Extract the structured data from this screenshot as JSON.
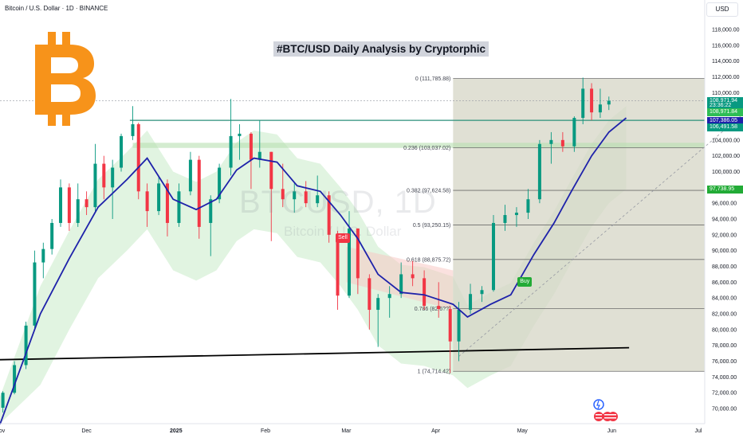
{
  "header": {
    "symbol_line": "Bitcoin / U.S. Dollar · 1D · BINANCE",
    "title": "#BTC/USD Daily Analysis by Cryptorphic",
    "currency_button": "USD"
  },
  "watermark": {
    "line1": "BTCUSD, 1D",
    "line2": "Bitcoin / U.S. Dollar"
  },
  "colors": {
    "up": "#089981",
    "down": "#f23645",
    "ema": "#1e22aa",
    "fib_box": "#d6d5c6",
    "cloud": "#c8ebc8"
  },
  "chart_data": {
    "type": "candlestick",
    "title": "#BTC/USD Daily Analysis by Cryptorphic",
    "y_axis": {
      "ylim": [
        68900,
        120600
      ],
      "ticks": [
        70000,
        72000,
        74000,
        76000,
        78000,
        80000,
        82000,
        84000,
        86000,
        88000,
        90000,
        92000,
        94000,
        96000,
        98000,
        100000,
        102000,
        104000,
        106000,
        108000,
        110000,
        112000,
        114000,
        116000,
        118000
      ],
      "tick_labels": [
        "70,000.00",
        "72,000.00",
        "74,000.00",
        "76,000.00",
        "78,000.00",
        "80,000.00",
        "82,000.00",
        "84,000.00",
        "86,000.00",
        "88,000.00",
        "90,000.00",
        "92,000.00",
        "94,000.00",
        "96,000.00",
        "98,000.00",
        "100,000.00",
        "102,000.00",
        "104,000.00",
        "106,000.00",
        "108,000.00",
        "110,000.00",
        "112,000.00",
        "114,000.00",
        "116,000.00",
        "118,000.00"
      ]
    },
    "x_axis": {
      "labels": [
        "Nov",
        "Dec",
        "2025",
        "Feb",
        "Mar",
        "Apr",
        "May",
        "Jun",
        "Jul"
      ],
      "dates": [
        "2024-11-01",
        "2024-12-01",
        "2025-01-01",
        "2025-02-01",
        "2025-03-01",
        "2025-04-01",
        "2025-05-01",
        "2025-06-01",
        "2025-07-01"
      ]
    },
    "fibonacci": [
      {
        "label": "0 (111,785.88)",
        "level": 0,
        "price": 111785.88
      },
      {
        "label": "0.236 (103,037.02)",
        "level": 0.236,
        "price": 103037.02
      },
      {
        "label": "0.382 (97,624.58)",
        "level": 0.382,
        "price": 97624.58
      },
      {
        "label": "0.5 (93,250.15)",
        "level": 0.5,
        "price": 93250.15
      },
      {
        "label": "0.618 (88,875.72)",
        "level": 0.618,
        "price": 88875.72
      },
      {
        "label": "0.786 (82,6??)",
        "level": 0.786,
        "price": 82646.0
      },
      {
        "label": "1 (74,714.42)",
        "level": 1,
        "price": 74714.42
      }
    ],
    "fib_range": {
      "start": "2025-04-07",
      "end": "2025-07-31"
    },
    "horizontal_levels": [
      {
        "name": "resistance-zone-low",
        "price": 103000
      },
      {
        "name": "resistance-zone-high",
        "price": 103650
      },
      {
        "name": "support-line",
        "price": 106490
      }
    ],
    "trendline": {
      "points": [
        [
          "2024-10-20",
          76100
        ],
        [
          "2025-06-07",
          77700
        ]
      ]
    },
    "diagonal": {
      "points": [
        [
          "2025-04-09",
          76600
        ],
        [
          "2025-07-31",
          111800
        ]
      ]
    },
    "ema": [
      [
        "2024-11-01",
        68000
      ],
      [
        "2024-11-15",
        82000
      ],
      [
        "2024-11-25",
        89000
      ],
      [
        "2024-12-05",
        95500
      ],
      [
        "2024-12-15",
        99000
      ],
      [
        "2024-12-22",
        101700
      ],
      [
        "2024-12-31",
        96500
      ],
      [
        "2025-01-08",
        95200
      ],
      [
        "2025-01-15",
        96500
      ],
      [
        "2025-01-22",
        100200
      ],
      [
        "2025-01-28",
        101700
      ],
      [
        "2025-02-05",
        101200
      ],
      [
        "2025-02-12",
        98200
      ],
      [
        "2025-02-20",
        97500
      ],
      [
        "2025-02-27",
        94500
      ],
      [
        "2025-03-05",
        91500
      ],
      [
        "2025-03-12",
        87000
      ],
      [
        "2025-03-20",
        84700
      ],
      [
        "2025-03-28",
        84400
      ],
      [
        "2025-04-07",
        83200
      ],
      [
        "2025-04-12",
        81600
      ],
      [
        "2025-04-20",
        83200
      ],
      [
        "2025-04-27",
        84400
      ],
      [
        "2025-05-05",
        89500
      ],
      [
        "2025-05-12",
        93500
      ],
      [
        "2025-05-18",
        97500
      ],
      [
        "2025-05-25",
        102000
      ],
      [
        "2025-05-31",
        105000
      ],
      [
        "2025-06-06",
        106800
      ]
    ],
    "candles": [
      [
        "2024-10-28",
        71500,
        73000,
        69300,
        70100
      ],
      [
        "2024-11-02",
        70100,
        72200,
        69500,
        72000
      ],
      [
        "2024-11-06",
        72000,
        76000,
        71800,
        75500
      ],
      [
        "2024-11-10",
        75500,
        81000,
        75000,
        80500
      ],
      [
        "2024-11-13",
        80500,
        90000,
        80200,
        88500
      ],
      [
        "2024-11-16",
        88500,
        91000,
        86500,
        90200
      ],
      [
        "2024-11-19",
        90200,
        94000,
        89500,
        93500
      ],
      [
        "2024-11-22",
        93500,
        99000,
        93000,
        98000
      ],
      [
        "2024-11-25",
        98000,
        98500,
        92500,
        93500
      ],
      [
        "2024-11-28",
        93500,
        98500,
        93000,
        96500
      ],
      [
        "2024-12-01",
        96500,
        97500,
        94500,
        95500
      ],
      [
        "2024-12-04",
        95500,
        103500,
        95000,
        101000
      ],
      [
        "2024-12-07",
        101000,
        102000,
        96500,
        98000
      ],
      [
        "2024-12-10",
        98000,
        101500,
        94000,
        100500
      ],
      [
        "2024-12-13",
        100500,
        104800,
        100000,
        104500
      ],
      [
        "2024-12-17",
        104500,
        108300,
        104000,
        106000
      ],
      [
        "2024-12-19",
        106000,
        106200,
        96500,
        97500
      ],
      [
        "2024-12-22",
        97500,
        98500,
        93000,
        95000
      ],
      [
        "2024-12-26",
        95000,
        99500,
        94500,
        98500
      ],
      [
        "2024-12-29",
        98500,
        99000,
        91800,
        93500
      ],
      [
        "2025-01-02",
        93500,
        98500,
        93000,
        97500
      ],
      [
        "2025-01-06",
        97500,
        102500,
        97000,
        101500
      ],
      [
        "2025-01-09",
        101500,
        102000,
        91500,
        93000
      ],
      [
        "2025-01-13",
        93500,
        97000,
        89300,
        96500
      ],
      [
        "2025-01-16",
        96500,
        101000,
        96000,
        100500
      ],
      [
        "2025-01-20",
        100500,
        109200,
        99500,
        104500
      ],
      [
        "2025-01-23",
        104500,
        106000,
        101500,
        104800
      ],
      [
        "2025-01-27",
        104800,
        105000,
        97800,
        101500
      ],
      [
        "2025-01-30",
        101500,
        106500,
        100500,
        102500
      ],
      [
        "2025-02-03",
        102500,
        102500,
        91200,
        97800
      ],
      [
        "2025-02-07",
        97800,
        101000,
        95500,
        96500
      ],
      [
        "2025-02-11",
        96500,
        98500,
        94800,
        97500
      ],
      [
        "2025-02-15",
        97500,
        98800,
        95500,
        96000
      ],
      [
        "2025-02-19",
        96000,
        99500,
        95500,
        97000
      ],
      [
        "2025-02-23",
        97000,
        97500,
        91000,
        92000
      ],
      [
        "2025-02-26",
        92000,
        92500,
        82500,
        84300
      ],
      [
        "2025-03-02",
        84300,
        95000,
        84000,
        92800
      ],
      [
        "2025-03-05",
        92800,
        92800,
        84500,
        86500
      ],
      [
        "2025-03-09",
        86500,
        87000,
        80000,
        82500
      ],
      [
        "2025-03-12",
        82500,
        84500,
        77800,
        84000
      ],
      [
        "2025-03-16",
        84000,
        85500,
        81500,
        84500
      ],
      [
        "2025-03-20",
        84500,
        88500,
        84000,
        87000
      ],
      [
        "2025-03-24",
        87000,
        88700,
        85500,
        86500
      ],
      [
        "2025-03-28",
        86500,
        87500,
        82500,
        83000
      ],
      [
        "2025-04-02",
        83000,
        86000,
        81500,
        82600
      ],
      [
        "2025-04-06",
        82600,
        83000,
        74500,
        78500
      ],
      [
        "2025-04-09",
        78500,
        83500,
        76000,
        82500
      ],
      [
        "2025-04-13",
        82500,
        85800,
        82000,
        84500
      ],
      [
        "2025-04-17",
        84500,
        85500,
        83500,
        85000
      ],
      [
        "2025-04-21",
        85000,
        94500,
        84800,
        93500
      ],
      [
        "2025-04-25",
        93500,
        95800,
        92500,
        94500
      ],
      [
        "2025-04-29",
        94500,
        95500,
        93000,
        94800
      ],
      [
        "2025-05-03",
        94800,
        97800,
        94000,
        96500
      ],
      [
        "2025-05-07",
        96500,
        104000,
        96000,
        103500
      ],
      [
        "2025-05-11",
        103500,
        105000,
        101000,
        104000
      ],
      [
        "2025-05-15",
        104000,
        105000,
        102500,
        103200
      ],
      [
        "2025-05-19",
        103200,
        107000,
        102500,
        106800
      ],
      [
        "2025-05-22",
        106800,
        111900,
        106000,
        110500
      ],
      [
        "2025-05-25",
        110500,
        111200,
        106500,
        107500
      ],
      [
        "2025-05-28",
        107500,
        110500,
        106800,
        108500
      ],
      [
        "2025-05-31",
        108500,
        109500,
        107800,
        108970
      ]
    ],
    "signals": [
      {
        "label": "Sell",
        "date": "2025-02-27",
        "price": 91600
      },
      {
        "label": "Buy",
        "date": "2025-05-01",
        "price": 86000
      }
    ],
    "price_tags": [
      {
        "label": "108,971.94",
        "price": 108971.94,
        "color": "#089981"
      },
      {
        "label": "23:36:22",
        "price": 108350,
        "color": "#089981"
      },
      {
        "label": "108,971.84",
        "price": 107500,
        "color": "#2ebd55"
      },
      {
        "label": "107,386.05",
        "price": 106450,
        "color": "#1e22aa"
      },
      {
        "label": "106,491.58",
        "price": 105600,
        "color": "#089981"
      },
      {
        "label": "97,738.95",
        "price": 97738.95,
        "color": "#22ab36"
      }
    ]
  }
}
